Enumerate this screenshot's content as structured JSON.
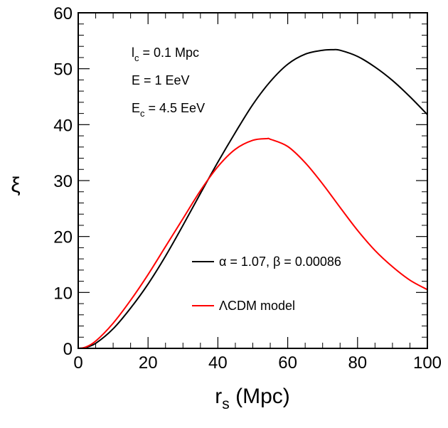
{
  "chart_data": {
    "type": "line",
    "title": "",
    "xlabel": {
      "main": "r",
      "sub": "s",
      "suffix": " (Mpc)"
    },
    "ylabel": "ξ",
    "xlim": [
      0,
      100
    ],
    "ylim": [
      0,
      60
    ],
    "xticks": [
      0,
      20,
      40,
      60,
      80,
      100
    ],
    "yticks": [
      0,
      10,
      20,
      30,
      40,
      50,
      60
    ],
    "x_minor_step": 5,
    "y_minor_step": 2,
    "grid": false,
    "annotations": [
      {
        "main": "l",
        "sub": "c",
        "suffix": " = 0.1 Mpc"
      },
      {
        "main": "E = 1 EeV",
        "sub": "",
        "suffix": ""
      },
      {
        "main": "E",
        "sub": "c",
        "suffix": " = 4.5 EeV"
      }
    ],
    "legend": {
      "position": "lower-right",
      "entries": [
        {
          "label": "α = 1.07, β = 0.00086",
          "color": "#000000"
        },
        {
          "label": "ΛCDM model",
          "color": "#ff0000"
        }
      ]
    },
    "series": [
      {
        "name": "α = 1.07, β = 0.00086",
        "color": "#000000",
        "x": [
          0,
          2,
          5,
          10,
          15,
          20,
          25,
          30,
          35,
          40,
          45,
          50,
          55,
          60,
          65,
          70,
          73,
          75,
          80,
          85,
          90,
          95,
          100
        ],
        "y": [
          0,
          0.15,
          0.9,
          3.5,
          7.2,
          11.5,
          16.5,
          22.0,
          27.7,
          33.3,
          38.6,
          43.6,
          47.7,
          50.8,
          52.6,
          53.3,
          53.4,
          53.3,
          52.2,
          50.3,
          47.9,
          45.0,
          41.8
        ]
      },
      {
        "name": "ΛCDM model",
        "color": "#ff0000",
        "x": [
          0,
          2,
          5,
          10,
          15,
          20,
          25,
          30,
          35,
          40,
          45,
          50,
          54,
          55,
          60,
          65,
          70,
          75,
          80,
          85,
          90,
          95,
          100
        ],
        "y": [
          0,
          0.2,
          1.3,
          4.5,
          8.6,
          13.2,
          18.2,
          23.2,
          28.2,
          32.5,
          35.6,
          37.2,
          37.5,
          37.4,
          36.1,
          33.2,
          29.4,
          25.2,
          21.1,
          17.5,
          14.6,
          12.2,
          10.5
        ]
      }
    ]
  }
}
